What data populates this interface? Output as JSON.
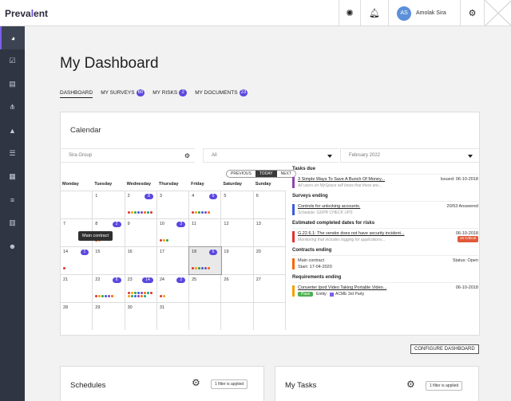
{
  "header": {
    "logo_main": "Preva",
    "logo_accent": "l",
    "logo_end": "ent",
    "user_initials": "AS",
    "user_name": "Amolak Sira",
    "icons": [
      "settings-wheel-icon",
      "bell-icon",
      "gear-icon"
    ]
  },
  "sidebar": {
    "items": [
      "dashboard-icon",
      "surveys-icon",
      "documents-icon",
      "hierarchy-icon",
      "risk-icon",
      "tasks-icon",
      "calendar-icon",
      "list-icon",
      "reports-icon",
      "users-icon"
    ]
  },
  "page": {
    "title": "My Dashboard"
  },
  "tabs": [
    {
      "label": "DASHBOARD",
      "badge": ""
    },
    {
      "label": "MY SURVEYS",
      "badge": "60"
    },
    {
      "label": "MY RISKS",
      "badge": "2"
    },
    {
      "label": "MY DOCUMENTS",
      "badge": "23"
    }
  ],
  "calendar": {
    "title": "Calendar",
    "filters": {
      "group": "Sira Group",
      "type": "All",
      "month": "February 2022"
    },
    "nav": {
      "prev": "PREVIOUS",
      "today": "TODAY",
      "next": "NEXT"
    },
    "weekdays": [
      "Monday",
      "Tuesday",
      "Wednesday",
      "Thursday",
      "Friday",
      "Saturday",
      "Sunday"
    ],
    "weeks": [
      [
        {
          "d": ""
        },
        {
          "d": "1"
        },
        {
          "d": "2",
          "c": "8"
        },
        {
          "d": "3"
        },
        {
          "d": "4",
          "c": "6"
        },
        {
          "d": "5"
        },
        {
          "d": "6"
        }
      ],
      [
        {
          "d": "7"
        },
        {
          "d": "8",
          "c": "2"
        },
        {
          "d": "9"
        },
        {
          "d": "10",
          "c": "3"
        },
        {
          "d": "11"
        },
        {
          "d": "12"
        },
        {
          "d": "13"
        }
      ],
      [
        {
          "d": "14",
          "c": "1"
        },
        {
          "d": "15"
        },
        {
          "d": "16"
        },
        {
          "d": "17"
        },
        {
          "d": "18",
          "c": "6"
        },
        {
          "d": "19"
        },
        {
          "d": "20"
        }
      ],
      [
        {
          "d": "21"
        },
        {
          "d": "22",
          "c": "6"
        },
        {
          "d": "23",
          "c": "14"
        },
        {
          "d": "24",
          "c": "2"
        },
        {
          "d": "25"
        },
        {
          "d": "26"
        },
        {
          "d": "27"
        }
      ],
      [
        {
          "d": "28"
        },
        {
          "d": "29"
        },
        {
          "d": "30"
        },
        {
          "d": "31"
        },
        {
          "d": ""
        },
        {
          "d": ""
        },
        {
          "d": ""
        }
      ]
    ],
    "tooltip": "Main contract"
  },
  "sections": {
    "tasks_due": {
      "title": "Tasks due",
      "items": [
        {
          "title": "3 Simple Ways To Save A Bunch Of Money...",
          "meta": "Issued: 06-10-2018",
          "sub": "All users on MySpace will know that there are..."
        }
      ]
    },
    "surveys_ending": {
      "title": "Surveys ending",
      "items": [
        {
          "title": "Controls for unlocking accounts.",
          "meta": "20/53 Answered",
          "sub": "Schedule: GDPR CHECK UPS"
        }
      ]
    },
    "risks": {
      "title": "Estimated completed dates for risks",
      "items": [
        {
          "title": "G.22.6.1: The vendor does not have security incident...",
          "meta": "06-10-2018",
          "badge": "16 Critical",
          "sub": "Monitoring that includes logging for applications..."
        }
      ]
    },
    "contracts": {
      "title": "Contracts ending",
      "items": [
        {
          "title": "Main contract",
          "meta": "Status: Open",
          "sub": "Start: 17-04-2020"
        }
      ]
    },
    "requirements": {
      "title": "Requirements ending",
      "items": [
        {
          "title": "Converter Ipod Video Taking Portable Video...",
          "meta": "06-10-2018",
          "status": "Pass",
          "entity": "Entity:",
          "entity_name": "ACME 3rd Party"
        }
      ]
    }
  },
  "configure_label": "CONFIGURE DASHBOARD",
  "cards": [
    {
      "title": "Schedules",
      "filter": "1 filter is applied"
    },
    {
      "title": "My Tasks",
      "filter": "1 filter is applied"
    }
  ]
}
